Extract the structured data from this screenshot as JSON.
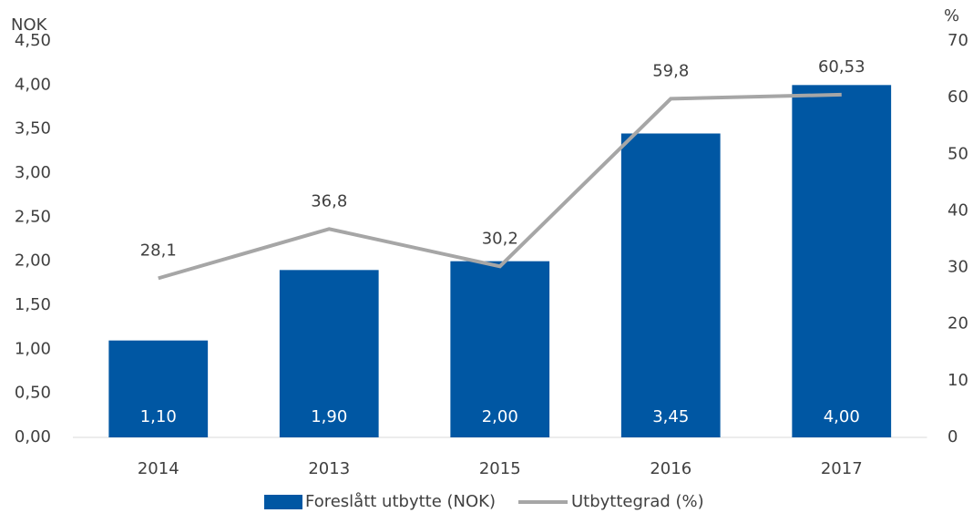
{
  "chart_data": {
    "type": "bar",
    "y_label": "NOK",
    "y2_label": "%",
    "categories": [
      "2014",
      "2013",
      "2015",
      "2016",
      "2017"
    ],
    "series": [
      {
        "name": "Foreslått utbytte (NOK)",
        "type": "bar",
        "color": "#0057a3",
        "values": [
          1.1,
          1.9,
          2.0,
          3.45,
          4.0
        ],
        "value_labels": [
          "1,10",
          "1,90",
          "2,00",
          "3,45",
          "4,00"
        ]
      },
      {
        "name": "Utbyttegrad (%)",
        "type": "line",
        "axis": "y2",
        "color": "#a6a6a6",
        "values": [
          28.1,
          36.8,
          30.2,
          59.8,
          60.53
        ],
        "value_labels": [
          "28,1",
          "36,8",
          "30,2",
          "59,8",
          "60,53"
        ]
      }
    ],
    "ylim": [
      0,
      4.5
    ],
    "yticks": [
      {
        "value": 0,
        "label": "0,00"
      },
      {
        "value": 0.5,
        "label": "0,50"
      },
      {
        "value": 1,
        "label": "1,00"
      },
      {
        "value": 1.5,
        "label": "1,50"
      },
      {
        "value": 2,
        "label": "2,00"
      },
      {
        "value": 2.5,
        "label": "2,50"
      },
      {
        "value": 3,
        "label": "3,00"
      },
      {
        "value": 3.5,
        "label": "3,50"
      },
      {
        "value": 4,
        "label": "4,00"
      },
      {
        "value": 4.5,
        "label": "4,50"
      }
    ],
    "y2lim": [
      0,
      70
    ],
    "y2ticks": [
      0,
      10,
      20,
      30,
      40,
      50,
      60,
      70
    ],
    "grid": false,
    "legend": "bottom"
  }
}
